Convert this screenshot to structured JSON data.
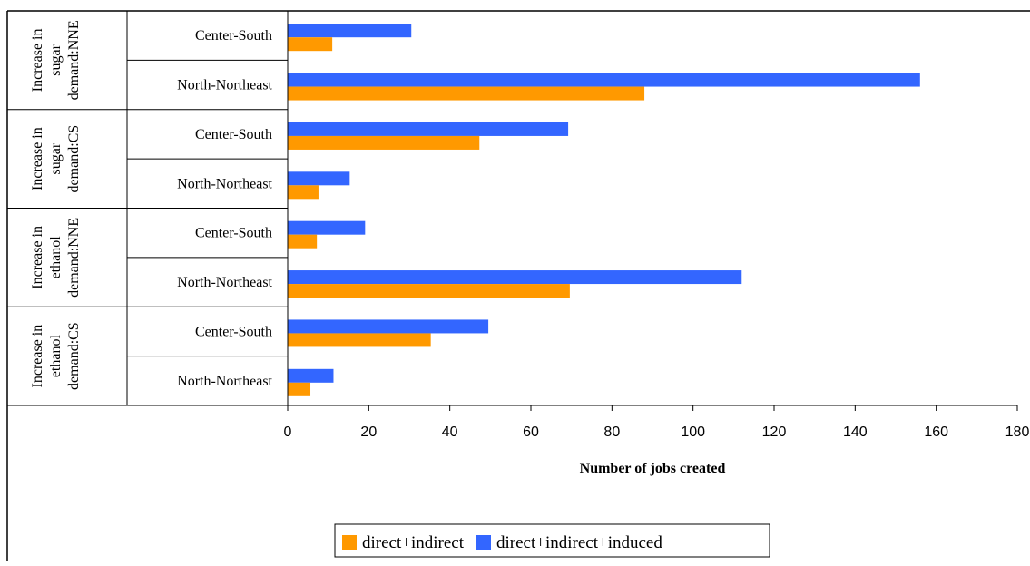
{
  "chart_data": {
    "type": "bar",
    "orientation": "horizontal",
    "xlabel": "Number of jobs created",
    "xlim": [
      0,
      180
    ],
    "xticks": [
      0,
      20,
      40,
      60,
      80,
      100,
      120,
      140,
      160,
      180
    ],
    "groups": [
      {
        "label": "Increase in sugar demand:NNE",
        "lines": [
          "Increase in",
          "sugar",
          "demand:NNE"
        ]
      },
      {
        "label": "Increase in sugar demand:CS",
        "lines": [
          "Increase in",
          "sugar",
          "demand:CS"
        ]
      },
      {
        "label": "Increase in ethanol demand:NNE",
        "lines": [
          "Increase in",
          "ethanol",
          "demand:NNE"
        ]
      },
      {
        "label": "Increase in ethanol demand:CS",
        "lines": [
          "Increase in",
          "ethanol",
          "demand:CS"
        ]
      }
    ],
    "categories": [
      "Center-South",
      "North-Northeast",
      "Center-South",
      "North-Northeast",
      "Center-South",
      "North-Northeast",
      "Center-South",
      "North-Northeast"
    ],
    "series": [
      {
        "name": "direct+indirect+induced",
        "color": "#3366ff",
        "values": [
          30.5,
          156,
          69.2,
          15.3,
          19.1,
          112,
          49.5,
          11.3
        ]
      },
      {
        "name": "direct+indirect",
        "color": "#ff9900",
        "values": [
          11,
          88,
          47.3,
          7.6,
          7.2,
          69.6,
          35.3,
          5.6
        ]
      }
    ],
    "legend": {
      "position": "bottom",
      "entries": [
        {
          "label": "direct+indirect",
          "color": "#ff9900"
        },
        {
          "label": "direct+indirect+induced",
          "color": "#3366ff"
        }
      ]
    },
    "grid": false
  }
}
